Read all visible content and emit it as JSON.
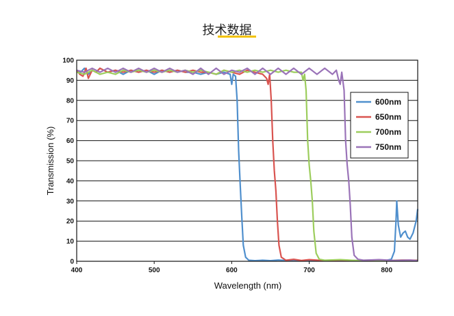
{
  "header": {
    "title": "技术数据",
    "underline_color": "#f2c200"
  },
  "chart_data": {
    "type": "line",
    "title": "技术数据",
    "xlabel": "Wavelength (nm)",
    "ylabel": "Transmission (%)",
    "xlim": [
      400,
      840
    ],
    "ylim": [
      0,
      100
    ],
    "x_ticks": [
      400,
      500,
      600,
      700,
      800
    ],
    "y_ticks": [
      0,
      10,
      20,
      30,
      40,
      50,
      60,
      70,
      80,
      90,
      100
    ],
    "grid": "horizontal",
    "legend_position": "right",
    "series": [
      {
        "name": "600nm",
        "color": "#4f8fcd",
        "points": [
          [
            400,
            95
          ],
          [
            405,
            94
          ],
          [
            410,
            96
          ],
          [
            415,
            93
          ],
          [
            420,
            95
          ],
          [
            425,
            94
          ],
          [
            430,
            96
          ],
          [
            440,
            94
          ],
          [
            450,
            95
          ],
          [
            460,
            93
          ],
          [
            470,
            95
          ],
          [
            480,
            94
          ],
          [
            490,
            95
          ],
          [
            500,
            93
          ],
          [
            510,
            95
          ],
          [
            520,
            94
          ],
          [
            530,
            95
          ],
          [
            540,
            94
          ],
          [
            550,
            94
          ],
          [
            560,
            93
          ],
          [
            570,
            94
          ],
          [
            580,
            93
          ],
          [
            590,
            94
          ],
          [
            598,
            93
          ],
          [
            600,
            88
          ],
          [
            602,
            93
          ],
          [
            605,
            92
          ],
          [
            607,
            80
          ],
          [
            609,
            55
          ],
          [
            611,
            38
          ],
          [
            613,
            22
          ],
          [
            615,
            8
          ],
          [
            618,
            2
          ],
          [
            622,
            0.5
          ],
          [
            630,
            0.3
          ],
          [
            640,
            0.5
          ],
          [
            650,
            0.3
          ],
          [
            660,
            0.6
          ],
          [
            680,
            0.2
          ],
          [
            700,
            0.4
          ],
          [
            720,
            0.3
          ],
          [
            740,
            0.2
          ],
          [
            760,
            0.4
          ],
          [
            780,
            0.3
          ],
          [
            800,
            0.5
          ],
          [
            806,
            1
          ],
          [
            810,
            5
          ],
          [
            812,
            20
          ],
          [
            813,
            30
          ],
          [
            815,
            18
          ],
          [
            818,
            12
          ],
          [
            821,
            14
          ],
          [
            824,
            15
          ],
          [
            827,
            12
          ],
          [
            830,
            11
          ],
          [
            834,
            14
          ],
          [
            838,
            20
          ],
          [
            840,
            26
          ]
        ]
      },
      {
        "name": "650nm",
        "color": "#d9534f",
        "points": [
          [
            400,
            95
          ],
          [
            404,
            93
          ],
          [
            408,
            92
          ],
          [
            412,
            96
          ],
          [
            415,
            91
          ],
          [
            420,
            95
          ],
          [
            425,
            94
          ],
          [
            430,
            96
          ],
          [
            440,
            94
          ],
          [
            450,
            95
          ],
          [
            460,
            94
          ],
          [
            470,
            95
          ],
          [
            480,
            94
          ],
          [
            490,
            95
          ],
          [
            500,
            94
          ],
          [
            510,
            95
          ],
          [
            520,
            94
          ],
          [
            530,
            95
          ],
          [
            540,
            94
          ],
          [
            550,
            95
          ],
          [
            560,
            94
          ],
          [
            570,
            94
          ],
          [
            580,
            93
          ],
          [
            590,
            95
          ],
          [
            600,
            94
          ],
          [
            610,
            93
          ],
          [
            620,
            95
          ],
          [
            630,
            94
          ],
          [
            640,
            93
          ],
          [
            645,
            91
          ],
          [
            647,
            88
          ],
          [
            649,
            93
          ],
          [
            651,
            80
          ],
          [
            653,
            60
          ],
          [
            655,
            45
          ],
          [
            657,
            35
          ],
          [
            659,
            20
          ],
          [
            661,
            8
          ],
          [
            664,
            2
          ],
          [
            670,
            0.5
          ],
          [
            680,
            1
          ],
          [
            690,
            0.4
          ],
          [
            700,
            0.8
          ],
          [
            720,
            0.3
          ],
          [
            740,
            0.6
          ],
          [
            760,
            0.3
          ],
          [
            780,
            0.5
          ],
          [
            800,
            0.4
          ],
          [
            820,
            0.6
          ],
          [
            840,
            0.5
          ]
        ]
      },
      {
        "name": "700nm",
        "color": "#9ccd5c",
        "points": [
          [
            400,
            94
          ],
          [
            410,
            93
          ],
          [
            420,
            95
          ],
          [
            430,
            93
          ],
          [
            440,
            94
          ],
          [
            450,
            93
          ],
          [
            460,
            95
          ],
          [
            470,
            94
          ],
          [
            480,
            95
          ],
          [
            490,
            94
          ],
          [
            500,
            95
          ],
          [
            510,
            94
          ],
          [
            520,
            95
          ],
          [
            530,
            94
          ],
          [
            540,
            95
          ],
          [
            550,
            94
          ],
          [
            560,
            95
          ],
          [
            570,
            94
          ],
          [
            580,
            93
          ],
          [
            590,
            95
          ],
          [
            600,
            94
          ],
          [
            610,
            95
          ],
          [
            620,
            94
          ],
          [
            630,
            95
          ],
          [
            640,
            94
          ],
          [
            650,
            95
          ],
          [
            660,
            94
          ],
          [
            670,
            95
          ],
          [
            680,
            94
          ],
          [
            690,
            94
          ],
          [
            692,
            90
          ],
          [
            694,
            93
          ],
          [
            696,
            85
          ],
          [
            698,
            60
          ],
          [
            700,
            48
          ],
          [
            702,
            40
          ],
          [
            704,
            30
          ],
          [
            706,
            15
          ],
          [
            709,
            4
          ],
          [
            713,
            1
          ],
          [
            720,
            0.5
          ],
          [
            740,
            0.8
          ],
          [
            760,
            0.4
          ],
          [
            780,
            0.6
          ],
          [
            800,
            0.3
          ],
          [
            820,
            0.5
          ],
          [
            840,
            0.4
          ]
        ]
      },
      {
        "name": "750nm",
        "color": "#9a73b8",
        "points": [
          [
            400,
            95
          ],
          [
            410,
            94
          ],
          [
            420,
            96
          ],
          [
            430,
            94
          ],
          [
            440,
            96
          ],
          [
            450,
            94
          ],
          [
            460,
            96
          ],
          [
            470,
            94
          ],
          [
            480,
            96
          ],
          [
            490,
            94
          ],
          [
            500,
            96
          ],
          [
            510,
            94
          ],
          [
            520,
            96
          ],
          [
            530,
            94
          ],
          [
            540,
            95
          ],
          [
            550,
            93
          ],
          [
            560,
            96
          ],
          [
            570,
            93
          ],
          [
            580,
            96
          ],
          [
            590,
            93
          ],
          [
            600,
            95
          ],
          [
            610,
            94
          ],
          [
            620,
            96
          ],
          [
            630,
            93
          ],
          [
            640,
            96
          ],
          [
            650,
            93
          ],
          [
            660,
            96
          ],
          [
            670,
            93
          ],
          [
            680,
            96
          ],
          [
            690,
            93
          ],
          [
            700,
            96
          ],
          [
            710,
            93
          ],
          [
            720,
            96
          ],
          [
            730,
            93
          ],
          [
            735,
            95
          ],
          [
            738,
            90
          ],
          [
            740,
            88
          ],
          [
            742,
            94
          ],
          [
            745,
            85
          ],
          [
            747,
            60
          ],
          [
            749,
            48
          ],
          [
            751,
            40
          ],
          [
            753,
            28
          ],
          [
            755,
            12
          ],
          [
            758,
            3
          ],
          [
            763,
            1
          ],
          [
            770,
            0.5
          ],
          [
            790,
            0.8
          ],
          [
            810,
            0.4
          ],
          [
            830,
            0.6
          ],
          [
            840,
            0.3
          ]
        ]
      }
    ]
  }
}
